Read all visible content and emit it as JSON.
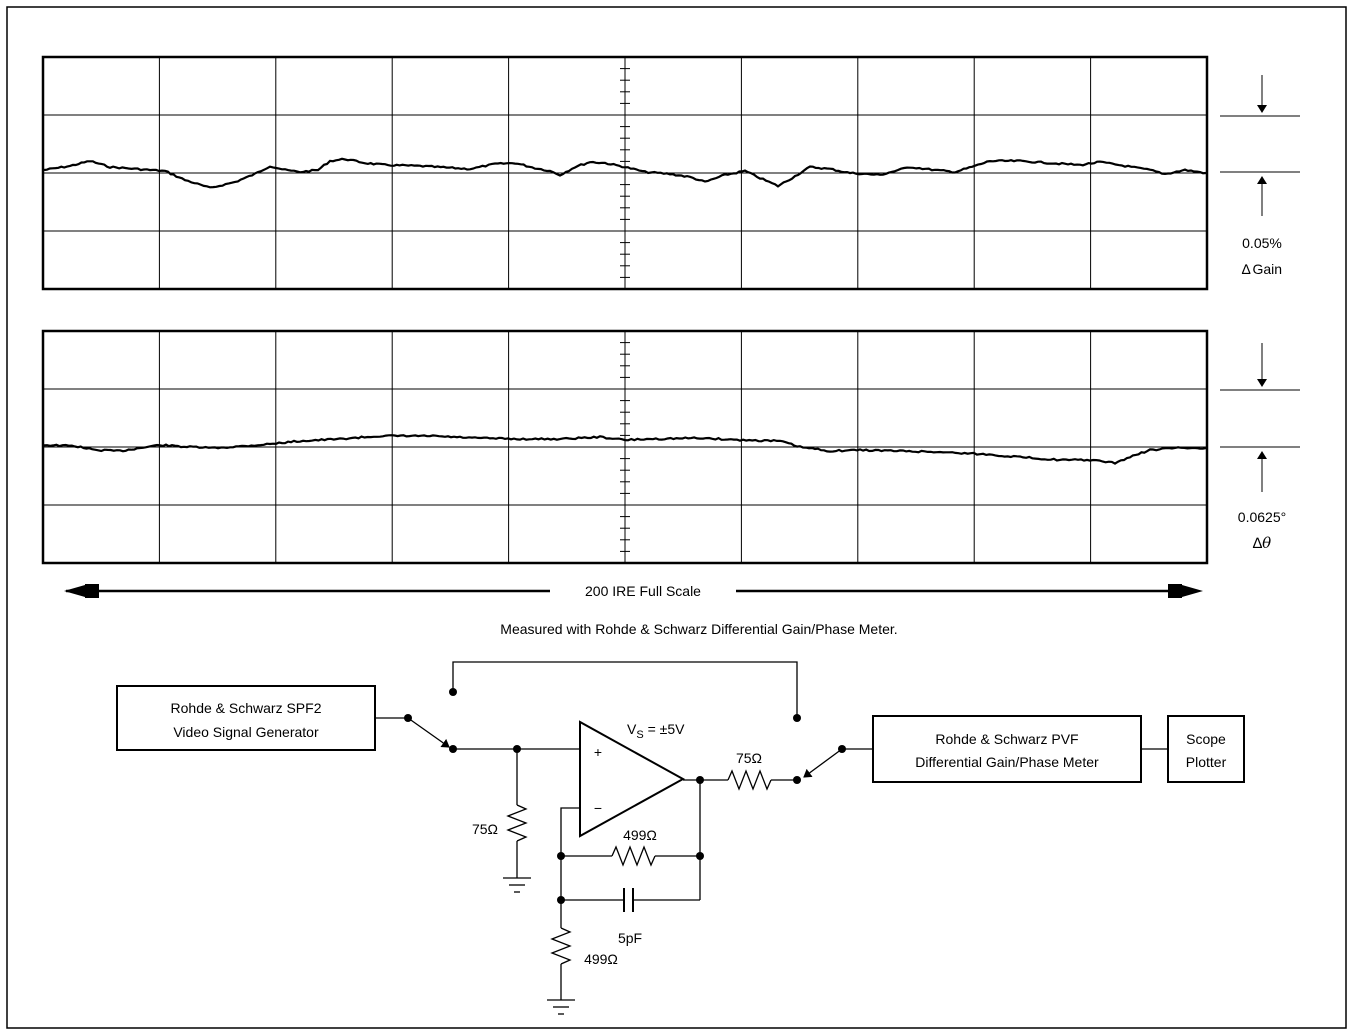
{
  "gain_plot": {
    "scale_value": "0.05%",
    "scale_label": "Gain",
    "delta_symbol": "∆"
  },
  "phase_plot": {
    "scale_value": "0.0625°",
    "delta_symbol": "∆",
    "theta_symbol": "θ"
  },
  "full_scale_label": "200 IRE Full Scale",
  "caption": "Measured with Rohde & Schwarz Differential Gain/Phase Meter.",
  "circuit": {
    "generator_line1": "Rohde & Schwarz SPF2",
    "generator_line2": "Video Signal Generator",
    "meter_line1": "Rohde & Schwarz PVF",
    "meter_line2": "Differential Gain/Phase Meter",
    "plotter_line1": "Scope",
    "plotter_line2": "Plotter",
    "supply_v": "V",
    "supply_sub": "S",
    "supply_value": " = ±5V",
    "plus_sign": "+",
    "minus_sign": "−",
    "r_term": "75Ω",
    "r_out": "75Ω",
    "r_feedback": "499Ω",
    "c_feedback": "5pF",
    "r_gain": "499Ω"
  }
}
